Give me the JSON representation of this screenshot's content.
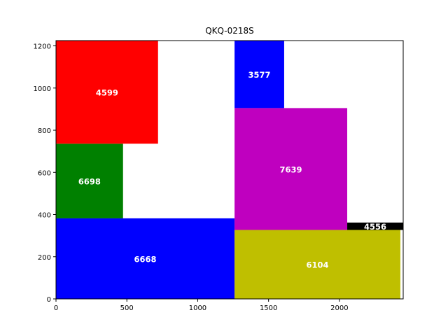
{
  "chart_data": {
    "type": "treemap",
    "title": "QKQ-0218S",
    "xlim": [
      0,
      2450
    ],
    "ylim": [
      0,
      1225
    ],
    "xticks": [
      0,
      500,
      1000,
      1500,
      2000
    ],
    "yticks": [
      0,
      200,
      400,
      600,
      800,
      1000,
      1200
    ],
    "grid": false,
    "rects": [
      {
        "label": "6668",
        "x0": 0,
        "y0": 0,
        "x1": 1260,
        "y1": 382,
        "color": "#0000ff"
      },
      {
        "label": "6698",
        "x0": 0,
        "y0": 382,
        "x1": 473,
        "y1": 736,
        "color": "#008000"
      },
      {
        "label": "4599",
        "x0": 0,
        "y0": 736,
        "x1": 720,
        "y1": 1225,
        "color": "#ff0000"
      },
      {
        "label": "3577",
        "x0": 1260,
        "y0": 905,
        "x1": 1610,
        "y1": 1225,
        "color": "#0000ff"
      },
      {
        "label": "7639",
        "x0": 1260,
        "y0": 327,
        "x1": 2055,
        "y1": 905,
        "color": "#bf00bf"
      },
      {
        "label": "6104",
        "x0": 1260,
        "y0": 0,
        "x1": 2430,
        "y1": 327,
        "color": "#bfbf00"
      },
      {
        "label": "4556",
        "x0": 2055,
        "y0": 327,
        "x1": 2450,
        "y1": 362,
        "color": "#000000"
      }
    ]
  }
}
